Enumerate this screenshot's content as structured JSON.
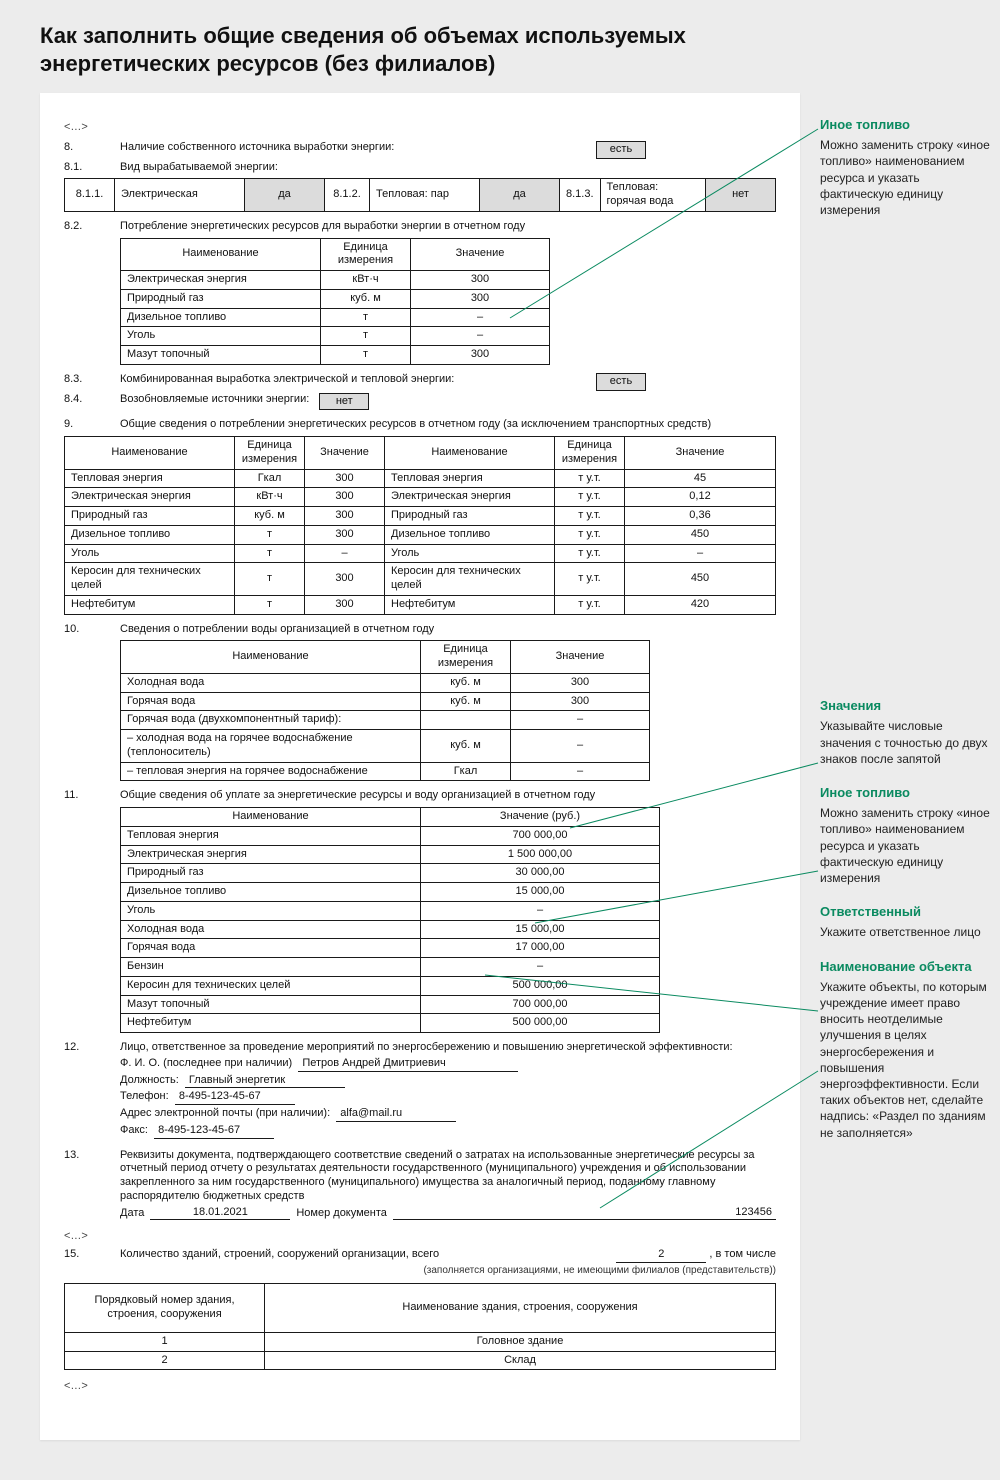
{
  "title": "Как заполнить общие сведения об объемах используемых энергетических ресурсов (без филиалов)",
  "ellipsis": "<…>",
  "s8": {
    "n": "8.",
    "t": "Наличие собственного источника выработки энергии:",
    "v": "есть",
    "s1": {
      "n": "8.1.",
      "t": "Вид вырабатываемой энергии:"
    }
  },
  "t811": {
    "c1n": "8.1.1.",
    "c1t": "Электрическая",
    "c1v": "да",
    "c2n": "8.1.2.",
    "c2t": "Тепловая: пар",
    "c2v": "да",
    "c3n": "8.1.3.",
    "c3t": "Тепловая: горячая вода",
    "c3v": "нет"
  },
  "s82": {
    "n": "8.2.",
    "t": "Потребление энергетических ресурсов для выработки энергии в отчетном году"
  },
  "t82": {
    "h1": "Наименование",
    "h2": "Единица измерения",
    "h3": "Значение",
    "rows": [
      {
        "a": "Электрическая энергия",
        "b": "кВт·ч",
        "c": "300"
      },
      {
        "a": "Природный газ",
        "b": "куб. м",
        "c": "300"
      },
      {
        "a": "Дизельное топливо",
        "b": "т",
        "c": "–"
      },
      {
        "a": "Уголь",
        "b": "т",
        "c": "–"
      },
      {
        "a": "Мазут топочный",
        "b": "т",
        "c": "300"
      }
    ]
  },
  "s83": {
    "n": "8.3.",
    "t": "Комбинированная выработка электрической и тепловой энергии:",
    "v": "есть"
  },
  "s84": {
    "n": "8.4.",
    "t": "Возобновляемые источники энергии:",
    "v": "нет"
  },
  "s9": {
    "n": "9.",
    "t": "Общие сведения о потреблении энергетических ресурсов в отчетном году (за исключением транспортных средств)"
  },
  "t9": {
    "h1": "Наименование",
    "h2": "Единица измерения",
    "h3": "Значение",
    "h4": "Наименование",
    "h5": "Единица измерения",
    "h6": "Значение",
    "rows": [
      {
        "a": "Тепловая энергия",
        "b": "Гкал",
        "c": "300",
        "d": "Тепловая энергия",
        "e": "т у.т.",
        "f": "45"
      },
      {
        "a": "Электрическая энергия",
        "b": "кВт·ч",
        "c": "300",
        "d": "Электрическая энергия",
        "e": "т у.т.",
        "f": "0,12"
      },
      {
        "a": "Природный газ",
        "b": "куб. м",
        "c": "300",
        "d": "Природный газ",
        "e": "т у.т.",
        "f": "0,36"
      },
      {
        "a": "Дизельное топливо",
        "b": "т",
        "c": "300",
        "d": "Дизельное топливо",
        "e": "т у.т.",
        "f": "450"
      },
      {
        "a": "Уголь",
        "b": "т",
        "c": "–",
        "d": "Уголь",
        "e": "т у.т.",
        "f": "–"
      },
      {
        "a": "Керосин для технических целей",
        "b": "т",
        "c": "300",
        "d": "Керосин для технических целей",
        "e": "т у.т.",
        "f": "450"
      },
      {
        "a": "Нефтебитум",
        "b": "т",
        "c": "300",
        "d": "Нефтебитум",
        "e": "т у.т.",
        "f": "420"
      }
    ]
  },
  "s10": {
    "n": "10.",
    "t": "Сведения о потреблении воды организацией в отчетном году"
  },
  "t10": {
    "h1": "Наименование",
    "h2": "Единица измерения",
    "h3": "Значение",
    "rows": [
      {
        "a": "Холодная вода",
        "b": "куб. м",
        "c": "300"
      },
      {
        "a": "Горячая вода",
        "b": "куб. м",
        "c": "300"
      },
      {
        "a": "Горячая вода (двухкомпонентный тариф):",
        "b": "",
        "c": "–"
      },
      {
        "a": "– холодная вода на горячее водоснабжение (теплоноситель)",
        "b": "куб. м",
        "c": "–"
      },
      {
        "a": "– тепловая энергия на горячее водоснабжение",
        "b": "Гкал",
        "c": "–"
      }
    ]
  },
  "s11": {
    "n": "11.",
    "t": "Общие сведения об уплате за энергетические ресурсы и воду организацией в отчетном году"
  },
  "t11": {
    "h1": "Наименование",
    "h2": "Значение (руб.)",
    "rows": [
      {
        "a": "Тепловая энергия",
        "b": "700 000,00"
      },
      {
        "a": "Электрическая энергия",
        "b": "1 500 000,00"
      },
      {
        "a": "Природный газ",
        "b": "30 000,00"
      },
      {
        "a": "Дизельное топливо",
        "b": "15 000,00"
      },
      {
        "a": "Уголь",
        "b": "–"
      },
      {
        "a": "Холодная вода",
        "b": "15 000,00"
      },
      {
        "a": "Горячая вода",
        "b": "17 000,00"
      },
      {
        "a": "Бензин",
        "b": "–"
      },
      {
        "a": "Керосин для технических целей",
        "b": "500 000,00"
      },
      {
        "a": "Мазут топочный",
        "b": "700 000,00"
      },
      {
        "a": "Нефтебитум",
        "b": "500 000,00"
      }
    ]
  },
  "s12": {
    "n": "12.",
    "t": "Лицо, ответственное за проведение мероприятий по энергосбережению и повышению энергетической эффективности:",
    "fio_k": "Ф. И. О. (последнее при наличии)",
    "fio_v": "Петров Андрей Дмитриевич",
    "pos_k": "Должность:",
    "pos_v": "Главный энергетик",
    "tel_k": "Телефон:",
    "tel_v": "8-495-123-45-67",
    "mail_k": "Адрес электронной почты (при наличии):",
    "mail_v": "alfa@mail.ru",
    "fax_k": "Факс:",
    "fax_v": "8-495-123-45-67"
  },
  "s13": {
    "n": "13.",
    "t": "Реквизиты документа, подтверждающего соответствие сведений о затратах на использованные энергетические ресурсы за отчетный период отчету о результатах деятельности государственного (муниципального) учреждения и об использовании закрепленного за ним государственного (муниципального) имущества за аналогичный период, поданному главному распорядителю бюджетных средств",
    "date_k": "Дата",
    "date_v": "18.01.2021",
    "numdoc_k": "Номер документа",
    "numdoc_v": "123456"
  },
  "s15": {
    "n": "15.",
    "t": "Количество зданий, строений, сооружений организации, всего",
    "v": "2",
    "tail": ", в том числе",
    "hint": "(заполняется организациями, не имеющими филиалов (представительств))"
  },
  "t15": {
    "h1": "Порядковый номер здания, строения, сооружения",
    "h2": "Наименование здания, строения, сооружения",
    "rows": [
      {
        "a": "1",
        "b": "Головное здание"
      },
      {
        "a": "2",
        "b": "Склад"
      }
    ]
  },
  "notes": {
    "n1": {
      "t": "Иное топливо",
      "b": "Можно заменить строку «иное топливо» наименованием ресурса и указать фактическую единицу измерения"
    },
    "n2": {
      "t": "Значения",
      "b": "Указывайте числовые значения с точностью до двух знаков после запятой"
    },
    "n3": {
      "t": "Иное топливо",
      "b": "Можно заменить строку «иное топливо» наименованием ресурса и указать фактическую единицу измерения"
    },
    "n4": {
      "t": "Ответственный",
      "b": "Укажите ответственное лицо"
    },
    "n5": {
      "t": "Наименование объекта",
      "b": "Укажите объекты, по которым учреждение имеет право вносить неотделимые улучшения в целях энергосбережения и повышения энергоэффективности. Если таких объектов нет, сделайте надпись: «Раздел по зданиям не заполняется»"
    }
  }
}
